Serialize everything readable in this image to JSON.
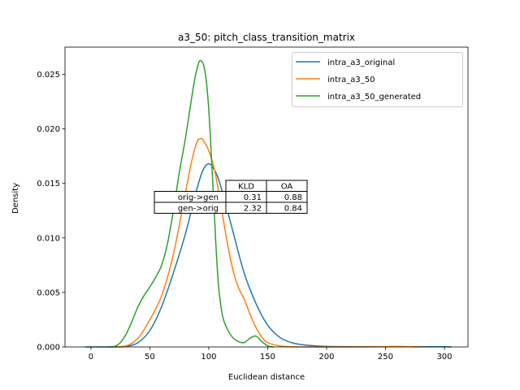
{
  "chart_data": {
    "type": "line",
    "title": "a3_50: pitch_class_transition_matrix",
    "xlabel": "Euclidean distance",
    "ylabel": "Density",
    "xlim": [
      -22,
      320
    ],
    "ylim": [
      0,
      0.0275
    ],
    "xticks": [
      0,
      50,
      100,
      150,
      200,
      250,
      300
    ],
    "xtick_labels": [
      "0",
      "50",
      "100",
      "150",
      "200",
      "250",
      "300"
    ],
    "yticks": [
      0,
      0.005,
      0.01,
      0.015,
      0.02,
      0.025
    ],
    "ytick_labels": [
      "0.000",
      "0.005",
      "0.010",
      "0.015",
      "0.020",
      "0.025"
    ],
    "grid": false,
    "legend_position": "top-right",
    "series": [
      {
        "name": "intra_a3_original",
        "color": "#1f77b4",
        "x": [
          -5,
          20,
          30,
          40,
          50,
          60,
          70,
          80,
          90,
          95,
          100,
          105,
          110,
          120,
          130,
          140,
          150,
          160,
          170,
          180,
          200,
          250,
          300,
          305
        ],
        "y": [
          0,
          0,
          5e-05,
          0.0004,
          0.0015,
          0.0037,
          0.0068,
          0.0103,
          0.0145,
          0.0162,
          0.0168,
          0.0162,
          0.0148,
          0.0108,
          0.0068,
          0.004,
          0.002,
          0.0009,
          0.0004,
          0.0002,
          5e-05,
          2e-05,
          2e-05,
          0
        ]
      },
      {
        "name": "intra_a3_50",
        "color": "#ff7f0e",
        "x": [
          20,
          30,
          40,
          50,
          60,
          70,
          80,
          85,
          90,
          93,
          95,
          100,
          105,
          110,
          115,
          120,
          125,
          130,
          135,
          140,
          145,
          150,
          160,
          170,
          180,
          200,
          240,
          260,
          270,
          280
        ],
        "y": [
          0,
          0.0001,
          0.0008,
          0.0025,
          0.0047,
          0.0085,
          0.014,
          0.0168,
          0.0188,
          0.0191,
          0.019,
          0.018,
          0.0162,
          0.0132,
          0.01,
          0.0073,
          0.0055,
          0.0044,
          0.003,
          0.0018,
          0.0009,
          0.0004,
          0.0001,
          2e-05,
          0,
          0,
          1e-05,
          5e-05,
          2e-05,
          0
        ]
      },
      {
        "name": "intra_a3_50_generated",
        "color": "#2ca02c",
        "x": [
          15,
          20,
          25,
          30,
          35,
          40,
          45,
          50,
          55,
          60,
          65,
          70,
          75,
          80,
          85,
          88,
          90,
          92,
          94,
          96,
          98,
          100,
          102,
          104,
          106,
          108,
          110,
          112,
          115,
          120,
          125,
          130,
          135,
          140,
          145,
          150,
          155
        ],
        "y": [
          0,
          5e-05,
          0.0004,
          0.0012,
          0.0024,
          0.0037,
          0.0047,
          0.0055,
          0.0064,
          0.0075,
          0.0095,
          0.0125,
          0.016,
          0.019,
          0.0225,
          0.0245,
          0.0255,
          0.0262,
          0.0262,
          0.0257,
          0.0243,
          0.0218,
          0.018,
          0.0138,
          0.0095,
          0.006,
          0.004,
          0.0027,
          0.0018,
          0.0009,
          0.0005,
          0.0004,
          0.0008,
          0.001,
          0.0005,
          0.0001,
          0
        ]
      }
    ],
    "table": {
      "col_headers": [
        "KLD",
        "OA"
      ],
      "rows": [
        {
          "label": "orig->gen",
          "values": [
            "0.31",
            "0.88"
          ]
        },
        {
          "label": "gen->orig",
          "values": [
            "2.32",
            "0.84"
          ]
        }
      ]
    }
  }
}
